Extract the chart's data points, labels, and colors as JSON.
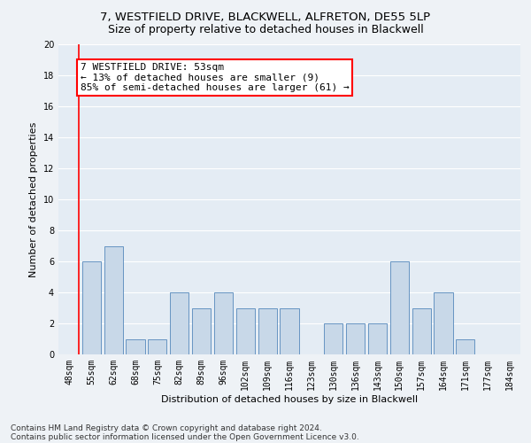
{
  "title": "7, WESTFIELD DRIVE, BLACKWELL, ALFRETON, DE55 5LP",
  "subtitle": "Size of property relative to detached houses in Blackwell",
  "xlabel": "Distribution of detached houses by size in Blackwell",
  "ylabel": "Number of detached properties",
  "categories": [
    "48sqm",
    "55sqm",
    "62sqm",
    "68sqm",
    "75sqm",
    "82sqm",
    "89sqm",
    "96sqm",
    "102sqm",
    "109sqm",
    "116sqm",
    "123sqm",
    "130sqm",
    "136sqm",
    "143sqm",
    "150sqm",
    "157sqm",
    "164sqm",
    "171sqm",
    "177sqm",
    "184sqm"
  ],
  "values": [
    0,
    6,
    7,
    1,
    1,
    4,
    3,
    4,
    3,
    3,
    3,
    0,
    2,
    2,
    2,
    6,
    3,
    4,
    1,
    0,
    0
  ],
  "bar_color": "#c8d8e8",
  "bar_edge_color": "#5588bb",
  "annotation_line1": "7 WESTFIELD DRIVE: 53sqm",
  "annotation_line2": "← 13% of detached houses are smaller (9)",
  "annotation_line3": "85% of semi-detached houses are larger (61) →",
  "annotation_box_color": "white",
  "annotation_box_edge": "red",
  "red_line_x": 0.43,
  "ylim": [
    0,
    20
  ],
  "yticks": [
    0,
    2,
    4,
    6,
    8,
    10,
    12,
    14,
    16,
    18,
    20
  ],
  "footnote1": "Contains HM Land Registry data © Crown copyright and database right 2024.",
  "footnote2": "Contains public sector information licensed under the Open Government Licence v3.0.",
  "bg_color": "#eef2f6",
  "plot_bg_color": "#e4ecf4",
  "grid_color": "#ffffff",
  "title_fontsize": 9.5,
  "subtitle_fontsize": 9,
  "axis_label_fontsize": 8,
  "tick_fontsize": 7,
  "annot_fontsize": 8,
  "footnote_fontsize": 6.5
}
